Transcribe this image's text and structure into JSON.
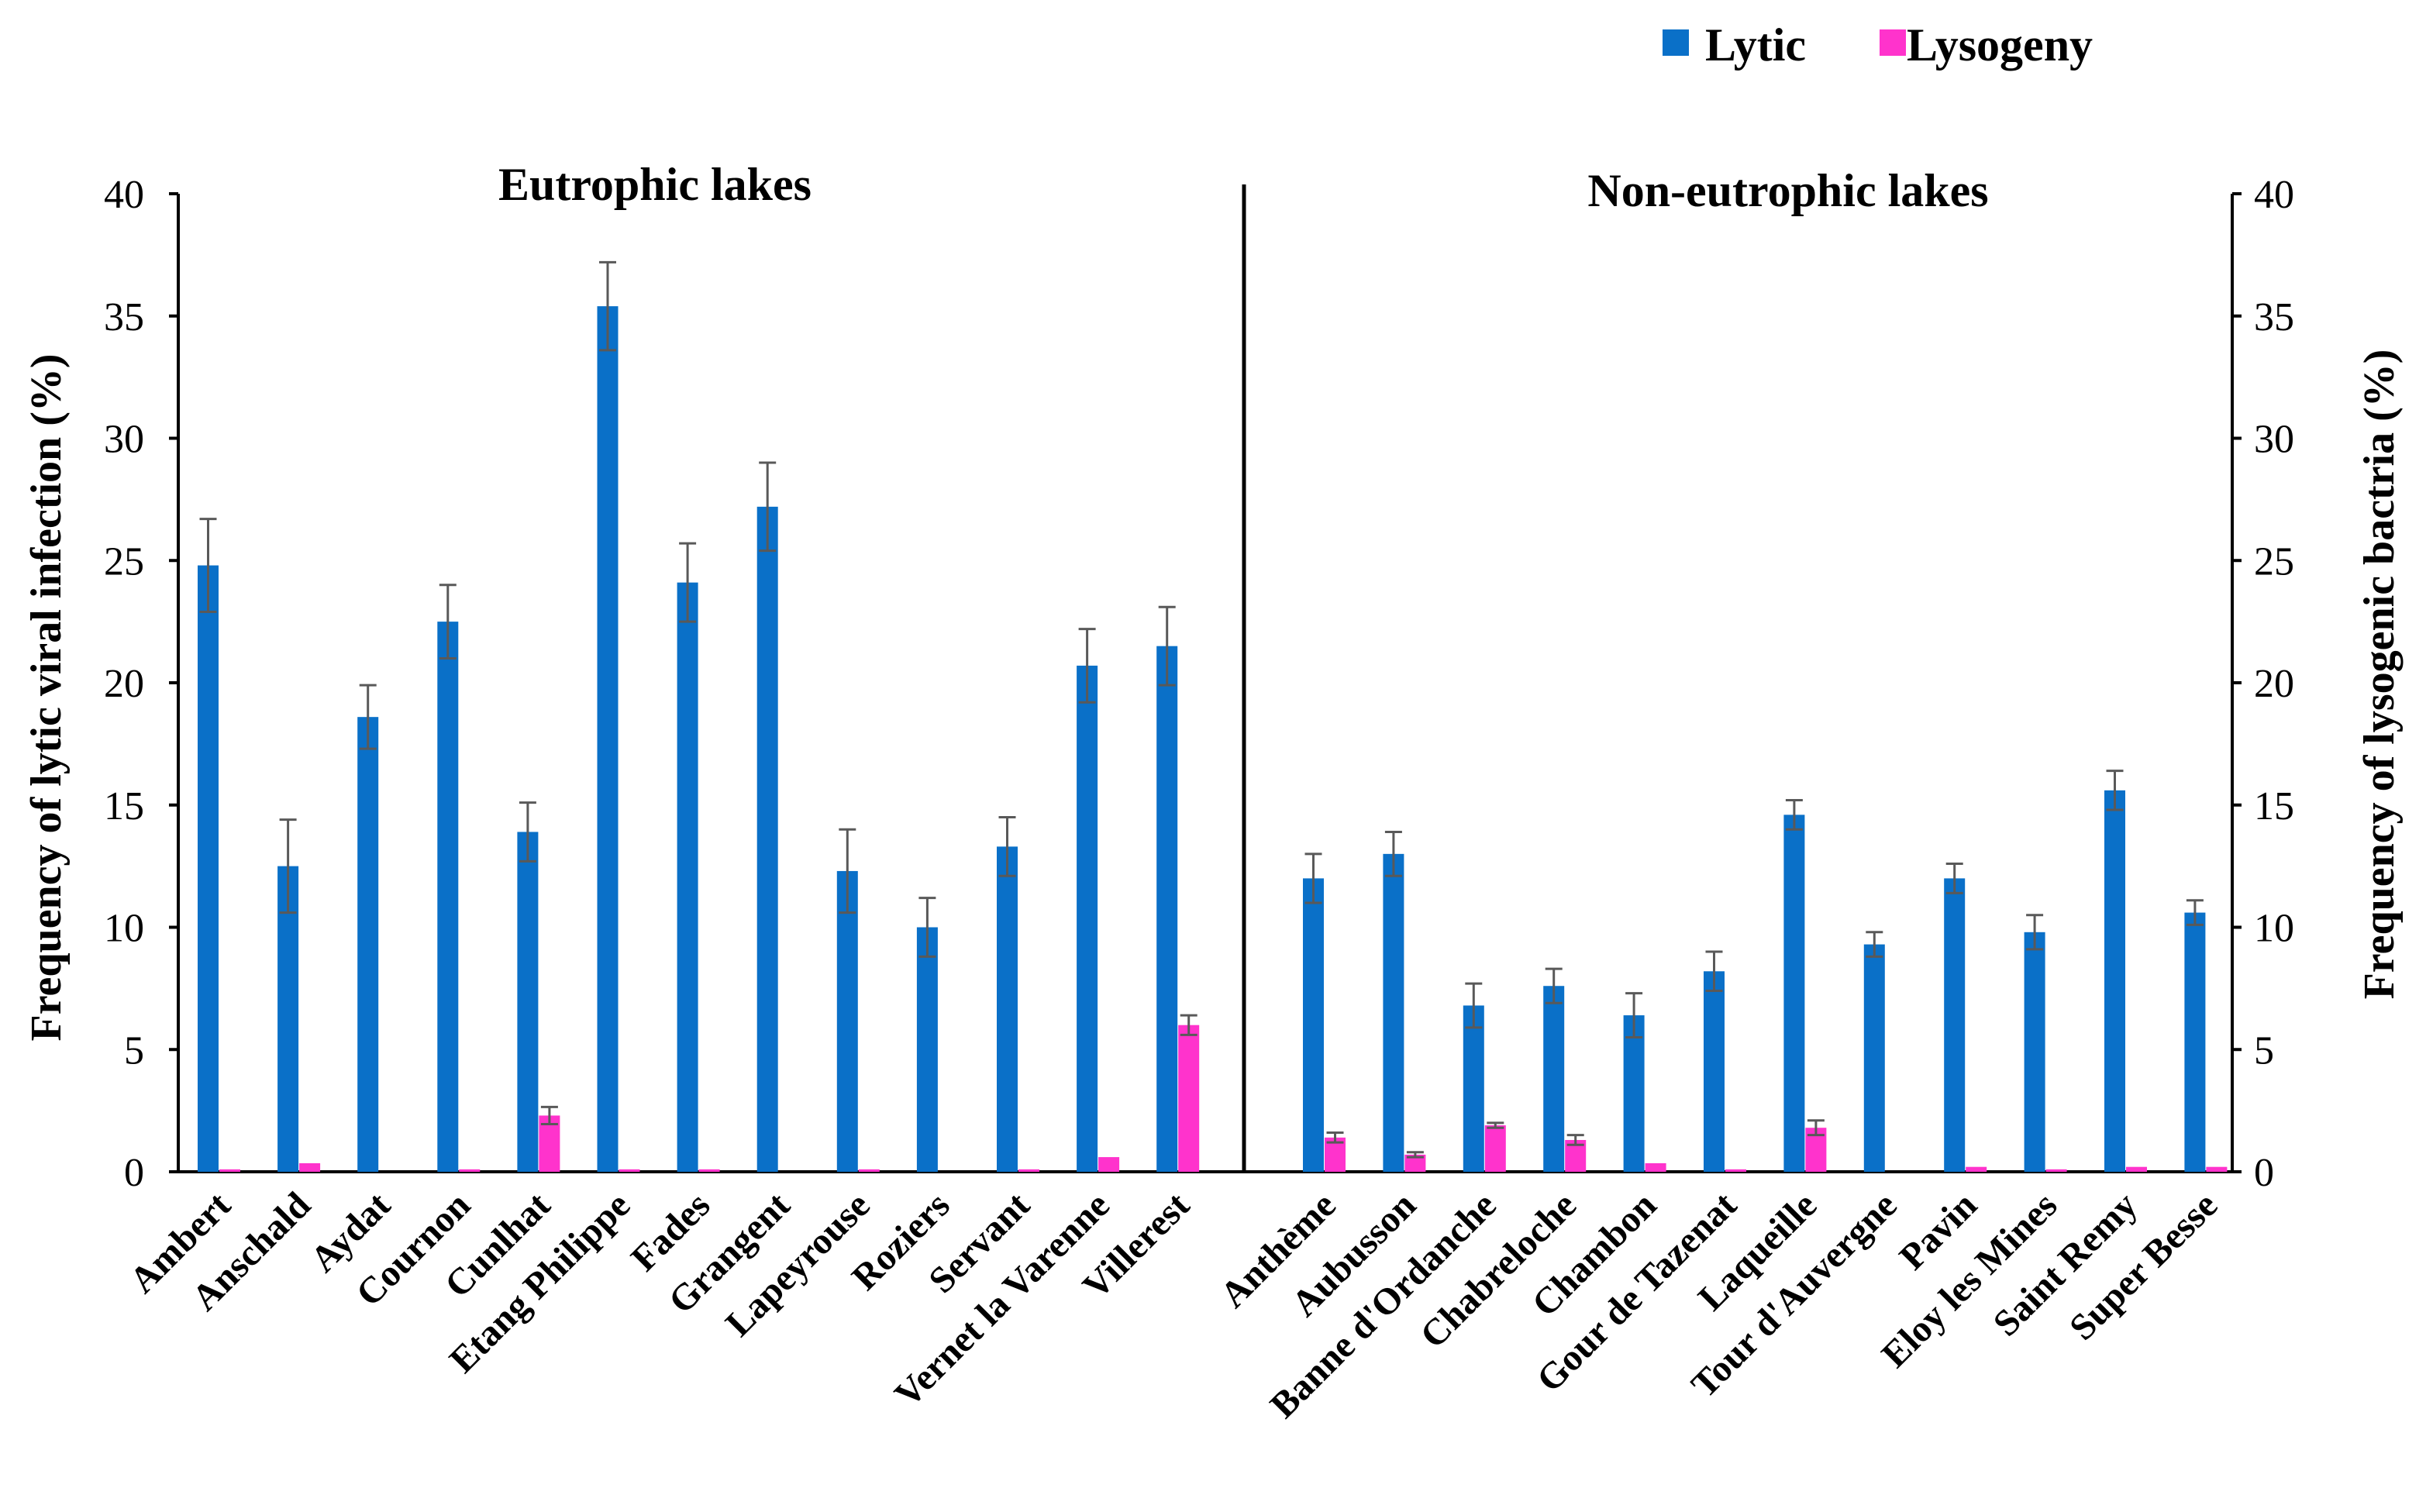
{
  "chart_data": {
    "type": "bar",
    "ylabel_left": "Frequency of lytic viral infection (%)",
    "ylabel_right": "Frequency of  lysogenic bactria (%)",
    "ylim": [
      0,
      40
    ],
    "yticks": [
      0,
      5,
      10,
      15,
      20,
      25,
      30,
      35,
      40
    ],
    "legend": {
      "position": "top-right",
      "entries": [
        "Lytic",
        "Lysogeny"
      ]
    },
    "colors": {
      "Lytic": "#0A70C8",
      "Lysogeny": "#FF33CC",
      "error": "#595959"
    },
    "groups": [
      {
        "title": "Eutrophic lakes",
        "categories": [
          "Ambert",
          "Anschald",
          "Aydat",
          "Cournon",
          "Cunlhat",
          "Etang Philippe",
          "Fades",
          "Grangent",
          "Lapeyrouse",
          "Roziers",
          "Servant",
          "Vernet la Varenne",
          "Villerest"
        ],
        "series": [
          {
            "name": "Lytic",
            "values": [
              24.8,
              12.5,
              18.6,
              22.5,
              13.9,
              35.4,
              24.1,
              27.2,
              12.3,
              10.0,
              13.3,
              20.7,
              21.5
            ],
            "errors": [
              1.9,
              1.9,
              1.3,
              1.5,
              1.2,
              1.8,
              1.6,
              1.8,
              1.7,
              1.2,
              1.2,
              1.5,
              1.6
            ]
          },
          {
            "name": "Lysogeny",
            "values": [
              0.1,
              0.35,
              0,
              0.1,
              2.3,
              0.1,
              0.1,
              0,
              0.1,
              0,
              0.1,
              0.6,
              6.0
            ],
            "errors": [
              0,
              0,
              0,
              0,
              0.35,
              0,
              0,
              0,
              0,
              0,
              0,
              0,
              0.4
            ]
          }
        ]
      },
      {
        "title": "Non-eutrophic lakes",
        "categories": [
          "Anthème",
          "Aubusson",
          "Banne d'Ordanche",
          "Chabreloche",
          "Chambon",
          "Gour de Tazenat",
          "Laqueille",
          "Tour d'Auvergne",
          "Pavin",
          "Eloy les Mines",
          "Saint Remy",
          "Super Besse"
        ],
        "series": [
          {
            "name": "Lytic",
            "values": [
              12.0,
              13.0,
              6.8,
              7.6,
              6.4,
              8.2,
              14.6,
              9.3,
              12.0,
              9.8,
              15.6,
              10.6
            ],
            "errors": [
              1.0,
              0.9,
              0.9,
              0.7,
              0.9,
              0.8,
              0.6,
              0.5,
              0.6,
              0.7,
              0.8,
              0.5
            ]
          },
          {
            "name": "Lysogeny",
            "values": [
              1.4,
              0.7,
              1.9,
              1.3,
              0.35,
              0.1,
              1.8,
              0,
              0.2,
              0.1,
              0.2,
              0.2
            ],
            "errors": [
              0.2,
              0.1,
              0.1,
              0.2,
              0,
              0,
              0.3,
              0,
              0,
              0,
              0,
              0
            ]
          }
        ]
      }
    ]
  }
}
